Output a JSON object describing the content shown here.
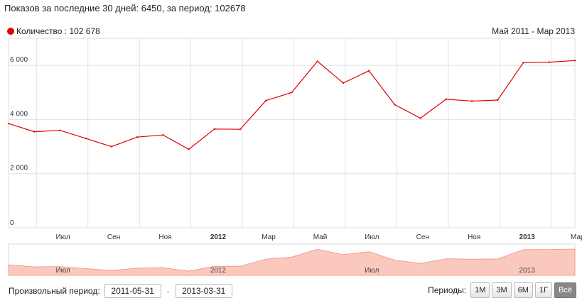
{
  "header": {
    "title": "Показов за последние 30 дней: 6450, за период: 102678"
  },
  "legend": {
    "label": "Количество : 102 678",
    "color": "#e00000"
  },
  "range_label": "Май 2011 - Мар 2013",
  "chart_data": {
    "type": "line",
    "title": "",
    "ylim": [
      0,
      7000
    ],
    "yticks": [
      0,
      2000,
      4000,
      6000
    ],
    "ytick_labels": [
      "0",
      "2 000",
      "4 000",
      "6 000"
    ],
    "x_tick_labels": [
      {
        "label": "Июл",
        "bold": false
      },
      {
        "label": "Сен",
        "bold": false
      },
      {
        "label": "Ноя",
        "bold": false
      },
      {
        "label": "2012",
        "bold": true
      },
      {
        "label": "Мар",
        "bold": false
      },
      {
        "label": "Май",
        "bold": false
      },
      {
        "label": "Июл",
        "bold": false
      },
      {
        "label": "Сен",
        "bold": false
      },
      {
        "label": "Ноя",
        "bold": false
      },
      {
        "label": "2013",
        "bold": true
      },
      {
        "label": "Мар",
        "bold": false
      }
    ],
    "grid": true,
    "series": [
      {
        "name": "Количество",
        "color": "#e00000",
        "x": [
          "2011-05",
          "2011-06",
          "2011-07",
          "2011-08",
          "2011-09",
          "2011-10",
          "2011-11",
          "2011-12",
          "2012-01",
          "2012-02",
          "2012-03",
          "2012-04",
          "2012-05",
          "2012-06",
          "2012-07",
          "2012-08",
          "2012-09",
          "2012-10",
          "2012-11",
          "2012-12",
          "2013-01",
          "2013-02",
          "2013-03"
        ],
        "values": [
          3850,
          3550,
          3600,
          3300,
          3000,
          3350,
          3430,
          2900,
          3650,
          3640,
          4700,
          5000,
          6150,
          5350,
          5800,
          4550,
          4050,
          4750,
          4680,
          4720,
          6100,
          6120,
          6180
        ]
      }
    ]
  },
  "navigator": {
    "labels": [
      "Июл",
      "2012",
      "Июл",
      "2013"
    ]
  },
  "footer": {
    "custom_period_label": "Произвольный период:",
    "date_from": "2011-05-31",
    "date_to": "2013-03-31",
    "periods_label": "Периоды:",
    "period_buttons": [
      "1М",
      "3М",
      "6М",
      "1Г",
      "Всё"
    ],
    "active_period": "Всё"
  }
}
